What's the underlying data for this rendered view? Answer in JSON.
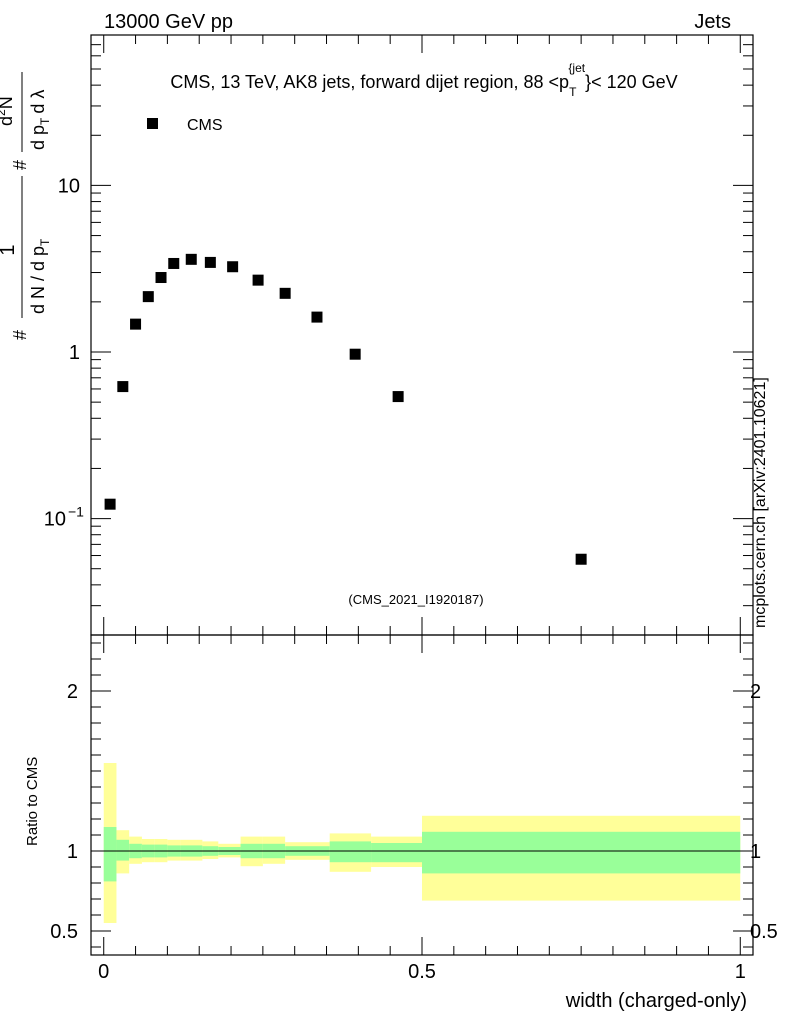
{
  "header": {
    "left": "13000 GeV pp",
    "right": "Jets"
  },
  "plot_title": {
    "prefix": "CMS, 13 TeV, AK8 jets, forward dijet region, 88 <p",
    "sub": "T",
    "sup": "{jet",
    "suffix": "}< 120 GeV"
  },
  "side_label": "mcplots.cern.ch [arXiv:2401.10621]",
  "analysis_id": "(CMS_2021_I1920187)",
  "colors": {
    "band_outer": "#ffff99",
    "band_inner": "#99ff99",
    "marker": "#000000",
    "analysis_text": "#999999",
    "side_text": "#808080"
  },
  "chart_data": [
    {
      "type": "scatter",
      "yscale": "log",
      "xlim": [
        -0.02,
        1.02
      ],
      "ylim": [
        0.02,
        80
      ],
      "ylabel": "# 1/(d N / d p_T) # d^2N/(d p_T d λ)",
      "ylabel_parts": {
        "num1": "1",
        "den1": "d N / d p",
        "den1_sub": "T",
        "num2": "d",
        "num2_sup": "2",
        "num2_rest": "N",
        "den2": "d p",
        "den2_sub": "T",
        "den2_rest": "d λ",
        "hash": "#"
      },
      "yticks": [
        {
          "value": 10,
          "label": "10"
        },
        {
          "value": 1,
          "label": "1"
        },
        {
          "value": 0.1,
          "label": "10",
          "sup": "−1"
        }
      ],
      "legend": {
        "label": "CMS",
        "position": "top-left"
      },
      "series": [
        {
          "name": "CMS",
          "points": [
            {
              "x": 0.01,
              "y": 0.122
            },
            {
              "x": 0.03,
              "y": 0.62
            },
            {
              "x": 0.05,
              "y": 1.47
            },
            {
              "x": 0.07,
              "y": 2.15
            },
            {
              "x": 0.09,
              "y": 2.8
            },
            {
              "x": 0.11,
              "y": 3.4
            },
            {
              "x": 0.1375,
              "y": 3.6
            },
            {
              "x": 0.1675,
              "y": 3.45
            },
            {
              "x": 0.2025,
              "y": 3.25
            },
            {
              "x": 0.2425,
              "y": 2.7
            },
            {
              "x": 0.285,
              "y": 2.25
            },
            {
              "x": 0.335,
              "y": 1.62
            },
            {
              "x": 0.395,
              "y": 0.97
            },
            {
              "x": 0.4625,
              "y": 0.54
            },
            {
              "x": 0.75,
              "y": 0.057
            }
          ]
        }
      ]
    },
    {
      "type": "area",
      "ylim": [
        0.35,
        2.35
      ],
      "ylabel": "Ratio to CMS",
      "xlabel": "width (charged-only)",
      "xticks": [
        {
          "value": 0,
          "label": "0"
        },
        {
          "value": 0.5,
          "label": "0.5"
        },
        {
          "value": 1,
          "label": "1"
        }
      ],
      "yticks": [
        {
          "value": 2,
          "label": "2"
        },
        {
          "value": 1,
          "label": "1"
        },
        {
          "value": 0.5,
          "label": "0.5"
        }
      ],
      "reference_line": 1,
      "bins": [
        {
          "x0": 0.0,
          "x1": 0.02,
          "in_lo": 0.81,
          "in_hi": 1.15,
          "out_lo": 0.55,
          "out_hi": 1.55
        },
        {
          "x0": 0.02,
          "x1": 0.04,
          "in_lo": 0.94,
          "in_hi": 1.07,
          "out_lo": 0.86,
          "out_hi": 1.13
        },
        {
          "x0": 0.04,
          "x1": 0.06,
          "in_lo": 0.955,
          "in_hi": 1.045,
          "out_lo": 0.92,
          "out_hi": 1.09
        },
        {
          "x0": 0.06,
          "x1": 0.08,
          "in_lo": 0.96,
          "in_hi": 1.04,
          "out_lo": 0.93,
          "out_hi": 1.075
        },
        {
          "x0": 0.08,
          "x1": 0.1,
          "in_lo": 0.96,
          "in_hi": 1.04,
          "out_lo": 0.93,
          "out_hi": 1.075
        },
        {
          "x0": 0.1,
          "x1": 0.12,
          "in_lo": 0.965,
          "in_hi": 1.035,
          "out_lo": 0.94,
          "out_hi": 1.07
        },
        {
          "x0": 0.12,
          "x1": 0.155,
          "in_lo": 0.965,
          "in_hi": 1.035,
          "out_lo": 0.94,
          "out_hi": 1.07
        },
        {
          "x0": 0.155,
          "x1": 0.18,
          "in_lo": 0.97,
          "in_hi": 1.03,
          "out_lo": 0.95,
          "out_hi": 1.06
        },
        {
          "x0": 0.18,
          "x1": 0.215,
          "in_lo": 0.975,
          "in_hi": 1.025,
          "out_lo": 0.96,
          "out_hi": 1.045
        },
        {
          "x0": 0.215,
          "x1": 0.25,
          "in_lo": 0.955,
          "in_hi": 1.045,
          "out_lo": 0.905,
          "out_hi": 1.09
        },
        {
          "x0": 0.25,
          "x1": 0.285,
          "in_lo": 0.955,
          "in_hi": 1.045,
          "out_lo": 0.92,
          "out_hi": 1.09
        },
        {
          "x0": 0.285,
          "x1": 0.355,
          "in_lo": 0.97,
          "in_hi": 1.03,
          "out_lo": 0.945,
          "out_hi": 1.055
        },
        {
          "x0": 0.355,
          "x1": 0.42,
          "in_lo": 0.93,
          "in_hi": 1.06,
          "out_lo": 0.87,
          "out_hi": 1.11
        },
        {
          "x0": 0.42,
          "x1": 0.5,
          "in_lo": 0.93,
          "in_hi": 1.05,
          "out_lo": 0.9,
          "out_hi": 1.09
        },
        {
          "x0": 0.5,
          "x1": 1.0,
          "in_lo": 0.86,
          "in_hi": 1.12,
          "out_lo": 0.69,
          "out_hi": 1.22
        }
      ]
    }
  ]
}
